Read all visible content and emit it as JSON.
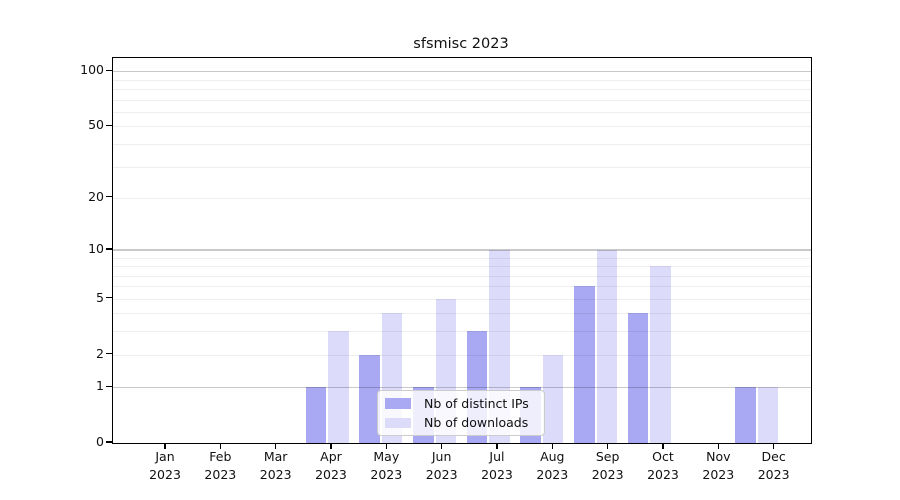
{
  "chart_data": {
    "type": "bar",
    "title": "sfsmisc 2023",
    "categories": [
      "Jan 2023",
      "Feb 2023",
      "Mar 2023",
      "Apr 2023",
      "May 2023",
      "Jun 2023",
      "Jul 2023",
      "Aug 2023",
      "Sep 2023",
      "Oct 2023",
      "Nov 2023",
      "Dec 2023"
    ],
    "x_tick_months": [
      "Jan",
      "Feb",
      "Mar",
      "Apr",
      "May",
      "Jun",
      "Jul",
      "Aug",
      "Sep",
      "Oct",
      "Nov",
      "Dec"
    ],
    "x_tick_year": "2023",
    "series": [
      {
        "name": "Nb of distinct IPs",
        "color": "#a9a9f3",
        "values": [
          0,
          0,
          0,
          1,
          2,
          1,
          3,
          1,
          6,
          4,
          0,
          1
        ]
      },
      {
        "name": "Nb of downloads",
        "color": "#dcdcfa",
        "values": [
          0,
          0,
          0,
          3,
          4,
          5,
          10,
          2,
          10,
          8,
          0,
          1
        ]
      }
    ],
    "yscale": "log1p",
    "ylim": [
      0,
      115
    ],
    "y_tick_labels": [
      "0",
      "1",
      "2",
      "5",
      "10",
      "20",
      "50",
      "100"
    ],
    "y_tick_values": [
      0,
      1,
      2,
      5,
      10,
      20,
      50,
      100
    ],
    "y_major_gridlines": [
      1,
      10,
      100
    ],
    "y_minor_gridlines": [
      2,
      3,
      4,
      5,
      6,
      7,
      8,
      9,
      20,
      30,
      40,
      50,
      60,
      70,
      80,
      90
    ],
    "grid": true,
    "legend_position": "lower center",
    "legend_entries": [
      "Nb of distinct IPs",
      "Nb of downloads"
    ]
  },
  "colors": {
    "axis": "#000000",
    "text": "#111111",
    "major_grid": "#c7c7c7",
    "minor_grid": "#ededed",
    "legend_border": "#cccccc",
    "legend_background": "rgba(255,255,255,0.8)"
  }
}
